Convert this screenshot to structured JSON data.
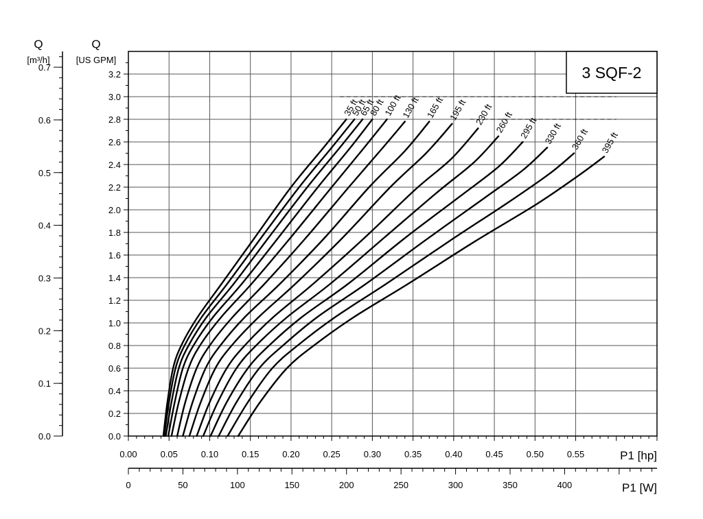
{
  "chart_data": {
    "type": "line",
    "title": "3 SQF-2",
    "y_left": {
      "label_top": "Q",
      "label_unit": "[m³/h]",
      "ticks": [
        "0.0",
        "0.1",
        "0.2",
        "0.3",
        "0.4",
        "0.5",
        "0.6",
        "0.7"
      ],
      "range": [
        0,
        0.73
      ]
    },
    "y_right": {
      "label_top": "Q",
      "label_unit": "[US GPM]",
      "ticks": [
        "0.0",
        "0.2",
        "0.4",
        "0.6",
        "0.8",
        "1.0",
        "1.2",
        "1.4",
        "1.6",
        "1.8",
        "2.0",
        "2.2",
        "2.4",
        "2.6",
        "2.8",
        "3.0",
        "3.2"
      ],
      "range": [
        0,
        3.4
      ]
    },
    "x_hp": {
      "label": "P1 [hp]",
      "ticks": [
        "0.00",
        "0.05",
        "0.10",
        "0.15",
        "0.20",
        "0.25",
        "0.30",
        "0.35",
        "0.40",
        "0.45",
        "0.50",
        "0.55"
      ],
      "range": [
        0,
        0.65
      ]
    },
    "x_w": {
      "label": "P1 [W]",
      "ticks": [
        "0",
        "50",
        "100",
        "150",
        "200",
        "250",
        "300",
        "350",
        "400"
      ],
      "range": [
        0,
        484.7
      ]
    },
    "grid": true,
    "series_x_unit": "hp",
    "series_y_unit": "US GPM",
    "series": [
      {
        "name": "35 ft",
        "points": [
          [
            0.043,
            0
          ],
          [
            0.048,
            0.3
          ],
          [
            0.055,
            0.6
          ],
          [
            0.065,
            0.8
          ],
          [
            0.085,
            1.05
          ],
          [
            0.115,
            1.35
          ],
          [
            0.155,
            1.75
          ],
          [
            0.2,
            2.2
          ],
          [
            0.24,
            2.55
          ],
          [
            0.268,
            2.8
          ]
        ]
      },
      {
        "name": "50 ft",
        "points": [
          [
            0.044,
            0
          ],
          [
            0.05,
            0.3
          ],
          [
            0.058,
            0.6
          ],
          [
            0.069,
            0.8
          ],
          [
            0.09,
            1.05
          ],
          [
            0.122,
            1.35
          ],
          [
            0.163,
            1.75
          ],
          [
            0.21,
            2.2
          ],
          [
            0.25,
            2.55
          ],
          [
            0.278,
            2.8
          ]
        ]
      },
      {
        "name": "65 ft",
        "points": [
          [
            0.046,
            0
          ],
          [
            0.053,
            0.3
          ],
          [
            0.062,
            0.6
          ],
          [
            0.074,
            0.8
          ],
          [
            0.096,
            1.05
          ],
          [
            0.13,
            1.35
          ],
          [
            0.172,
            1.75
          ],
          [
            0.22,
            2.2
          ],
          [
            0.26,
            2.55
          ],
          [
            0.288,
            2.8
          ]
        ]
      },
      {
        "name": "80 ft",
        "points": [
          [
            0.049,
            0
          ],
          [
            0.057,
            0.3
          ],
          [
            0.067,
            0.6
          ],
          [
            0.08,
            0.8
          ],
          [
            0.104,
            1.05
          ],
          [
            0.14,
            1.35
          ],
          [
            0.184,
            1.75
          ],
          [
            0.233,
            2.2
          ],
          [
            0.273,
            2.55
          ],
          [
            0.3,
            2.8
          ]
        ]
      },
      {
        "name": "100 ft",
        "points": [
          [
            0.053,
            0
          ],
          [
            0.062,
            0.3
          ],
          [
            0.074,
            0.6
          ],
          [
            0.088,
            0.8
          ],
          [
            0.114,
            1.05
          ],
          [
            0.152,
            1.35
          ],
          [
            0.199,
            1.75
          ],
          [
            0.25,
            2.2
          ],
          [
            0.29,
            2.55
          ],
          [
            0.318,
            2.8
          ]
        ]
      },
      {
        "name": "130 ft",
        "points": [
          [
            0.06,
            0
          ],
          [
            0.07,
            0.3
          ],
          [
            0.084,
            0.6
          ],
          [
            0.1,
            0.8
          ],
          [
            0.128,
            1.05
          ],
          [
            0.168,
            1.35
          ],
          [
            0.218,
            1.75
          ],
          [
            0.271,
            2.2
          ],
          [
            0.313,
            2.55
          ],
          [
            0.34,
            2.78
          ]
        ]
      },
      {
        "name": "165 ft",
        "points": [
          [
            0.067,
            0
          ],
          [
            0.079,
            0.3
          ],
          [
            0.095,
            0.6
          ],
          [
            0.113,
            0.8
          ],
          [
            0.143,
            1.05
          ],
          [
            0.187,
            1.35
          ],
          [
            0.241,
            1.75
          ],
          [
            0.296,
            2.2
          ],
          [
            0.34,
            2.52
          ],
          [
            0.37,
            2.78
          ]
        ]
      },
      {
        "name": "195 ft",
        "points": [
          [
            0.075,
            0
          ],
          [
            0.089,
            0.3
          ],
          [
            0.107,
            0.6
          ],
          [
            0.127,
            0.8
          ],
          [
            0.16,
            1.05
          ],
          [
            0.206,
            1.35
          ],
          [
            0.263,
            1.75
          ],
          [
            0.322,
            2.2
          ],
          [
            0.366,
            2.5
          ],
          [
            0.398,
            2.76
          ]
        ]
      },
      {
        "name": "230 ft",
        "points": [
          [
            0.084,
            0
          ],
          [
            0.1,
            0.3
          ],
          [
            0.121,
            0.6
          ],
          [
            0.143,
            0.8
          ],
          [
            0.178,
            1.05
          ],
          [
            0.228,
            1.35
          ],
          [
            0.29,
            1.75
          ],
          [
            0.353,
            2.18
          ],
          [
            0.397,
            2.45
          ],
          [
            0.43,
            2.72
          ]
        ]
      },
      {
        "name": "260 ft",
        "points": [
          [
            0.092,
            0
          ],
          [
            0.11,
            0.3
          ],
          [
            0.133,
            0.6
          ],
          [
            0.157,
            0.8
          ],
          [
            0.195,
            1.05
          ],
          [
            0.249,
            1.35
          ],
          [
            0.314,
            1.75
          ],
          [
            0.379,
            2.15
          ],
          [
            0.425,
            2.42
          ],
          [
            0.455,
            2.65
          ]
        ]
      },
      {
        "name": "295 ft",
        "points": [
          [
            0.101,
            0
          ],
          [
            0.121,
            0.3
          ],
          [
            0.147,
            0.6
          ],
          [
            0.173,
            0.8
          ],
          [
            0.213,
            1.05
          ],
          [
            0.271,
            1.35
          ],
          [
            0.34,
            1.75
          ],
          [
            0.408,
            2.12
          ],
          [
            0.455,
            2.38
          ],
          [
            0.485,
            2.6
          ]
        ]
      },
      {
        "name": "330 ft",
        "points": [
          [
            0.111,
            0
          ],
          [
            0.133,
            0.3
          ],
          [
            0.161,
            0.6
          ],
          [
            0.19,
            0.8
          ],
          [
            0.232,
            1.05
          ],
          [
            0.293,
            1.35
          ],
          [
            0.365,
            1.73
          ],
          [
            0.437,
            2.1
          ],
          [
            0.485,
            2.35
          ],
          [
            0.515,
            2.55
          ]
        ]
      },
      {
        "name": "360 ft",
        "points": [
          [
            0.122,
            0
          ],
          [
            0.147,
            0.3
          ],
          [
            0.177,
            0.6
          ],
          [
            0.208,
            0.8
          ],
          [
            0.254,
            1.05
          ],
          [
            0.318,
            1.35
          ],
          [
            0.394,
            1.72
          ],
          [
            0.468,
            2.07
          ],
          [
            0.518,
            2.32
          ],
          [
            0.548,
            2.5
          ]
        ]
      },
      {
        "name": "395 ft",
        "points": [
          [
            0.135,
            0
          ],
          [
            0.162,
            0.3
          ],
          [
            0.195,
            0.6
          ],
          [
            0.228,
            0.8
          ],
          [
            0.277,
            1.05
          ],
          [
            0.345,
            1.35
          ],
          [
            0.426,
            1.72
          ],
          [
            0.502,
            2.05
          ],
          [
            0.553,
            2.3
          ],
          [
            0.585,
            2.47
          ]
        ]
      }
    ]
  }
}
